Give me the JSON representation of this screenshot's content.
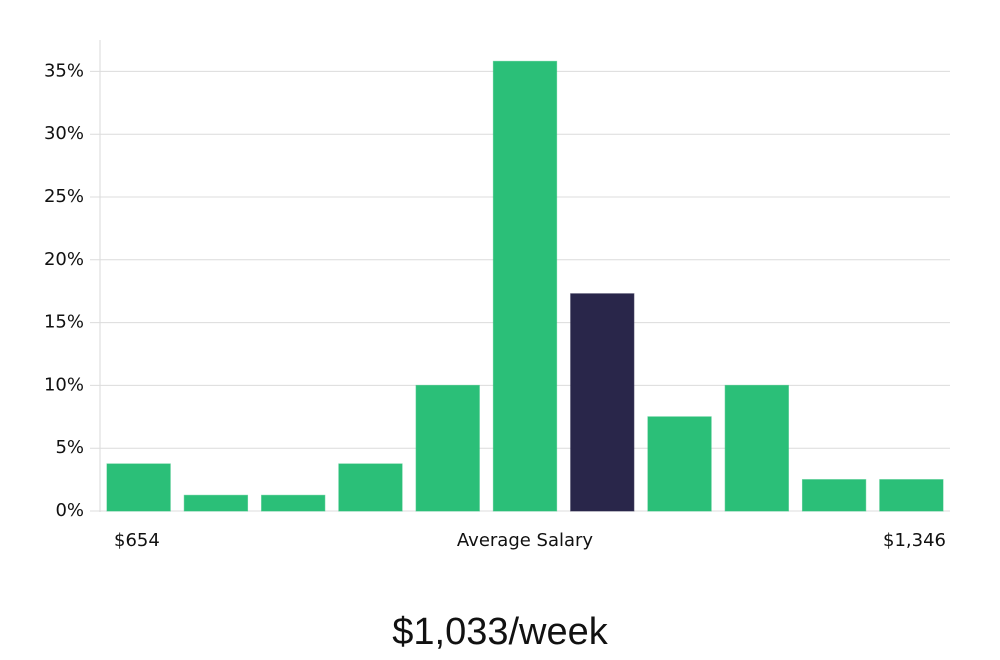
{
  "chart_data": {
    "type": "bar",
    "categories": [
      "$654",
      null,
      null,
      null,
      null,
      null,
      null,
      null,
      null,
      null,
      "$1,346"
    ],
    "values": [
      3.75,
      1.25,
      1.25,
      3.75,
      10,
      35.8,
      17.3,
      7.5,
      10,
      2.5,
      2.5
    ],
    "colors": [
      "#2bbf78",
      "#2bbf78",
      "#2bbf78",
      "#2bbf78",
      "#2bbf78",
      "#2bbf78",
      "#29264a",
      "#2bbf78",
      "#2bbf78",
      "#2bbf78",
      "#2bbf78"
    ],
    "xlabel": "Average Salary",
    "subtitle": "$1,033/week",
    "ylim": [
      0,
      37.5
    ],
    "yticks": [
      {
        "value": 0,
        "label": "0%"
      },
      {
        "value": 5,
        "label": "5%"
      },
      {
        "value": 10,
        "label": "10%"
      },
      {
        "value": 15,
        "label": "15%"
      },
      {
        "value": 20,
        "label": "20%"
      },
      {
        "value": 25,
        "label": "25%"
      },
      {
        "value": 30,
        "label": "30%"
      },
      {
        "value": 35,
        "label": "35%"
      }
    ],
    "grid": true
  }
}
